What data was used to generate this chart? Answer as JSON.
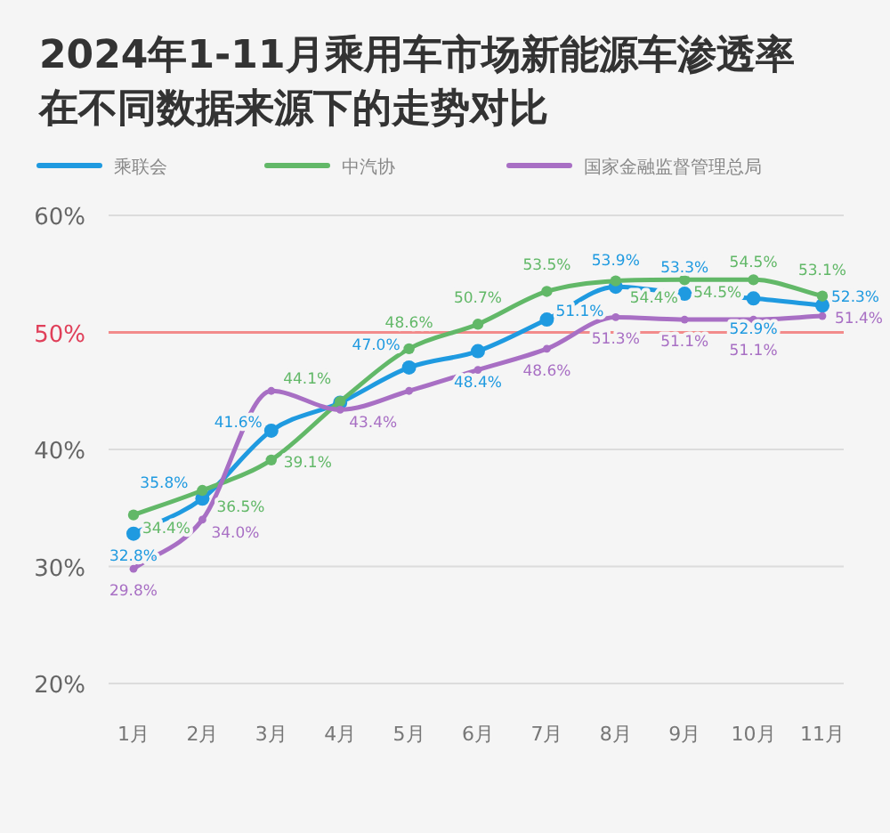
{
  "chart_data": {
    "type": "line",
    "title": "2024年1-11月乘用车市场新能源车渗透率在不同数据来源下的走势对比",
    "categories": [
      "1月",
      "2月",
      "3月",
      "4月",
      "5月",
      "6月",
      "7月",
      "8月",
      "9月",
      "10月",
      "11月"
    ],
    "series": [
      {
        "name": "乘联会",
        "color": "#1f9ae0",
        "values": [
          32.8,
          35.8,
          41.6,
          44.0,
          47.0,
          48.4,
          51.1,
          53.9,
          53.3,
          52.9,
          52.3
        ],
        "value_labels": [
          "32.8%",
          "35.8%",
          "41.6%",
          null,
          "47.0%",
          "48.4%",
          "51.1%",
          "53.9%",
          "53.3%",
          "52.9%",
          "52.3%"
        ]
      },
      {
        "name": "中汽协",
        "color": "#62b868",
        "values": [
          34.4,
          36.5,
          39.1,
          44.1,
          48.6,
          50.7,
          53.5,
          54.4,
          54.5,
          54.5,
          53.1
        ],
        "value_labels": [
          "34.4%",
          "36.5%",
          "39.1%",
          "44.1%",
          "48.6%",
          "50.7%",
          "53.5%",
          "54.4%",
          "54.5%",
          "54.5%",
          "53.1%"
        ]
      },
      {
        "name": "国家金融监督管理总局",
        "color": "#a86fc4",
        "values": [
          29.8,
          34.0,
          45.0,
          43.4,
          45.0,
          46.8,
          48.6,
          51.3,
          51.1,
          51.1,
          51.4
        ],
        "value_labels": [
          "29.8%",
          "34.0%",
          null,
          "43.4%",
          null,
          null,
          "48.6%",
          "51.3%",
          "51.1%",
          "51.1%",
          "51.4%"
        ]
      }
    ],
    "ylim": [
      20,
      60
    ],
    "yticks": [
      {
        "value": 20,
        "label": "20%"
      },
      {
        "value": 30,
        "label": "30%"
      },
      {
        "value": 40,
        "label": "40%"
      },
      {
        "value": 50,
        "label": "50%"
      },
      {
        "value": 60,
        "label": "60%"
      }
    ],
    "ref_lines": [
      {
        "axis": "y",
        "value": 50,
        "label": null,
        "color": "#f28b8b"
      }
    ],
    "grid": "y",
    "legend": "top left",
    "marker": "circle",
    "line_style": "solid"
  }
}
